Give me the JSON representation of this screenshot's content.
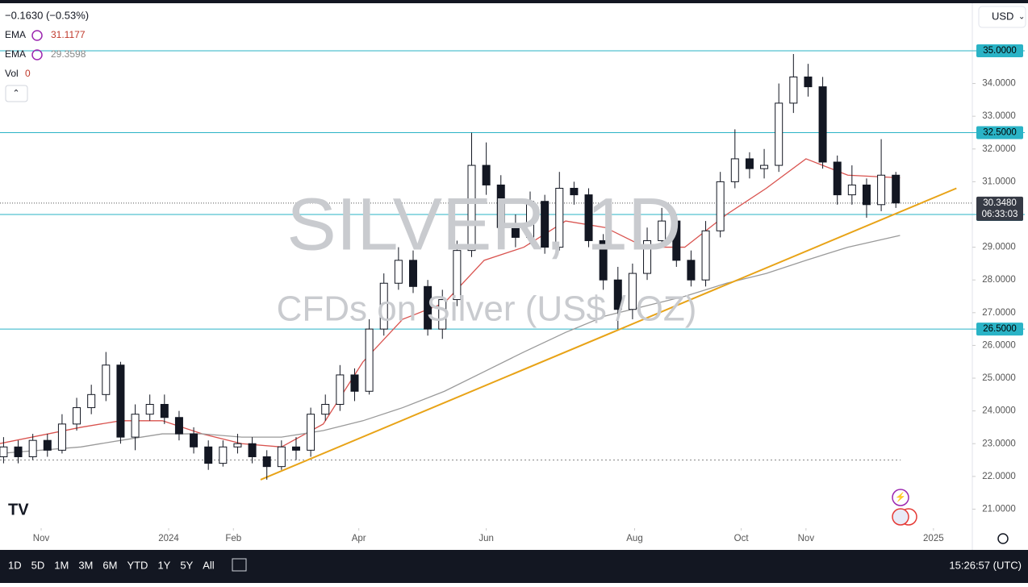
{
  "header": {
    "change": "−0.1630 (−0.53%)",
    "indicators": [
      {
        "label": "EMA",
        "value": "31.1177",
        "color": "#c0392b"
      },
      {
        "label": "EMA",
        "value": "29.3598",
        "color": "#888888"
      },
      {
        "label": "Vol",
        "value": "0",
        "color": "#c0392b"
      }
    ],
    "currency": "USD"
  },
  "chart_data": {
    "type": "candlestick",
    "title": "SILVER, 1D",
    "subtitle": "CFDs on Silver (US$ / OZ)",
    "x": [
      -18,
      -11,
      -4,
      3,
      10,
      17,
      24,
      31,
      38,
      45,
      52,
      59,
      66,
      73,
      80,
      87,
      94,
      101,
      108,
      115,
      122,
      129,
      136,
      143,
      150,
      157,
      164,
      171,
      178,
      185,
      192,
      199,
      206,
      213,
      220,
      227,
      234,
      241,
      248,
      255,
      262,
      269,
      276,
      283,
      290,
      297,
      304,
      311,
      318,
      325,
      332,
      339,
      346,
      353,
      360,
      367,
      374,
      381,
      388,
      395,
      402,
      409
    ],
    "open": [
      22.6,
      22.9,
      22.6,
      23.1,
      22.8,
      23.6,
      24.1,
      24.5,
      25.4,
      23.2,
      23.9,
      24.2,
      23.8,
      23.3,
      22.9,
      22.4,
      22.9,
      23.0,
      22.6,
      22.3,
      22.9,
      22.8,
      23.9,
      24.2,
      25.1,
      24.6,
      26.5,
      27.9,
      28.6,
      27.8,
      26.5,
      27.4,
      28.9,
      31.5,
      30.9,
      29.6,
      29.3,
      30.4,
      29.0,
      30.8,
      30.6,
      29.2,
      28.0,
      27.1,
      28.2,
      29.2,
      29.8,
      28.6,
      28.0,
      29.5,
      31.0,
      31.7,
      31.4,
      31.5,
      33.4,
      34.2,
      33.9,
      31.6,
      30.6,
      30.9,
      30.3,
      31.2
    ],
    "high": [
      23.2,
      23.1,
      23.3,
      23.3,
      23.9,
      24.4,
      24.8,
      25.8,
      25.5,
      24.2,
      24.5,
      24.5,
      24.0,
      23.5,
      23.1,
      23.1,
      23.3,
      23.2,
      22.8,
      23.1,
      23.2,
      24.1,
      24.5,
      25.4,
      25.3,
      26.8,
      28.2,
      29.0,
      28.9,
      28.0,
      27.7,
      29.2,
      32.5,
      32.2,
      31.2,
      30.0,
      30.7,
      30.6,
      31.3,
      31.0,
      30.8,
      29.4,
      28.4,
      28.5,
      29.6,
      30.2,
      30.0,
      28.9,
      29.8,
      31.3,
      32.6,
      31.9,
      32.0,
      34.0,
      34.9,
      34.6,
      34.2,
      31.8,
      31.5,
      31.1,
      32.3,
      31.3
    ],
    "low": [
      22.4,
      22.4,
      22.5,
      22.6,
      22.7,
      23.4,
      23.9,
      24.3,
      23.0,
      22.8,
      23.7,
      23.6,
      23.1,
      22.7,
      22.2,
      22.3,
      22.7,
      22.4,
      21.9,
      22.2,
      22.5,
      22.6,
      23.7,
      24.0,
      24.3,
      24.5,
      26.3,
      27.7,
      27.6,
      26.3,
      26.2,
      27.2,
      28.7,
      30.6,
      29.4,
      29.0,
      29.1,
      28.8,
      28.9,
      30.3,
      29.0,
      27.7,
      26.5,
      26.8,
      28.0,
      29.0,
      28.4,
      27.8,
      27.8,
      29.3,
      30.8,
      31.1,
      31.1,
      31.3,
      33.1,
      33.6,
      31.4,
      30.3,
      30.3,
      29.9,
      30.1,
      30.2
    ],
    "close": [
      22.9,
      22.6,
      23.1,
      22.8,
      23.6,
      24.1,
      24.5,
      25.4,
      23.2,
      23.9,
      24.2,
      23.8,
      23.3,
      22.9,
      22.4,
      22.9,
      23.0,
      22.6,
      22.3,
      22.9,
      22.8,
      23.9,
      24.2,
      25.1,
      24.6,
      26.5,
      27.9,
      28.6,
      27.8,
      26.5,
      27.4,
      28.9,
      31.5,
      30.9,
      29.6,
      29.3,
      30.4,
      29.0,
      30.8,
      30.6,
      29.2,
      28.0,
      27.1,
      28.2,
      29.2,
      29.8,
      28.6,
      28.0,
      29.5,
      31.0,
      31.7,
      31.4,
      31.5,
      33.4,
      34.2,
      33.9,
      31.6,
      30.6,
      30.9,
      30.3,
      31.2,
      30.35
    ],
    "up_color": "#ffffff",
    "down_color": "#131722",
    "series": [
      {
        "name": "EMA",
        "color": "#d9534f",
        "x": [
          -20,
          19,
          38,
          58,
          77,
          96,
          115,
          135,
          154,
          173,
          193,
          212,
          231,
          251,
          270,
          289,
          308,
          328,
          347,
          366,
          386,
          411
        ],
        "values": [
          23.0,
          23.5,
          23.7,
          23.7,
          23.3,
          23.0,
          22.9,
          23.6,
          25.5,
          26.8,
          27.3,
          28.6,
          29.0,
          29.8,
          29.6,
          29.0,
          29.0,
          30.0,
          30.8,
          31.7,
          31.2,
          31.12
        ]
      },
      {
        "name": "EMA",
        "color": "#9a9a9a",
        "x": [
          -20,
          19,
          38,
          58,
          77,
          96,
          115,
          135,
          154,
          173,
          193,
          212,
          231,
          251,
          270,
          289,
          308,
          328,
          347,
          366,
          386,
          411
        ],
        "values": [
          22.7,
          22.9,
          23.1,
          23.3,
          23.3,
          23.2,
          23.2,
          23.4,
          23.7,
          24.1,
          24.6,
          25.2,
          25.8,
          26.4,
          26.9,
          27.2,
          27.5,
          27.9,
          28.2,
          28.6,
          29.0,
          29.36
        ]
      }
    ],
    "levels": [
      {
        "value": 35,
        "label": "35.0000"
      },
      {
        "value": 32.5,
        "label": "32.5000"
      },
      {
        "value": 30,
        "label": "30.0000"
      },
      {
        "value": 26.5,
        "label": "26.5000"
      }
    ],
    "level_color": "#2ab3c6",
    "last_price": {
      "value": 30.348,
      "label": "30.3480",
      "countdown": "06:33:03"
    },
    "dotted_level": 22.5,
    "trendline": {
      "x": [
        105,
        438
      ],
      "values": [
        21.9,
        30.8
      ],
      "color": "#e8a317"
    },
    "xlim": [
      -19.7,
      445.6
    ],
    "xticks": [
      {
        "value": 0,
        "label": "Nov"
      },
      {
        "value": 61,
        "label": "2024"
      },
      {
        "value": 92,
        "label": "Feb"
      },
      {
        "value": 152,
        "label": "Apr"
      },
      {
        "value": 213,
        "label": "Jun"
      },
      {
        "value": 284,
        "label": "Aug"
      },
      {
        "value": 335,
        "label": "Oct"
      },
      {
        "value": 366,
        "label": "Nov"
      },
      {
        "value": 427,
        "label": "2025"
      }
    ],
    "ylim": [
      20.42,
      36.55
    ],
    "yticks": [
      {
        "value": 21,
        "label": "21.0000"
      },
      {
        "value": 22,
        "label": "22.0000"
      },
      {
        "value": 23,
        "label": "23.0000"
      },
      {
        "value": 24,
        "label": "24.0000"
      },
      {
        "value": 25,
        "label": "25.0000"
      },
      {
        "value": 26,
        "label": "26.0000"
      },
      {
        "value": 27,
        "label": "27.0000"
      },
      {
        "value": 28,
        "label": "28.0000"
      },
      {
        "value": 29,
        "label": "29.0000"
      },
      {
        "value": 31,
        "label": "31.0000"
      },
      {
        "value": 32,
        "label": "32.0000"
      },
      {
        "value": 33,
        "label": "33.0000"
      },
      {
        "value": 34,
        "label": "34.0000"
      }
    ]
  },
  "toolbar": {
    "ranges": [
      "1D",
      "5D",
      "1M",
      "3M",
      "6M",
      "YTD",
      "1Y",
      "5Y",
      "All"
    ],
    "clock": "15:26:57 (UTC)"
  }
}
